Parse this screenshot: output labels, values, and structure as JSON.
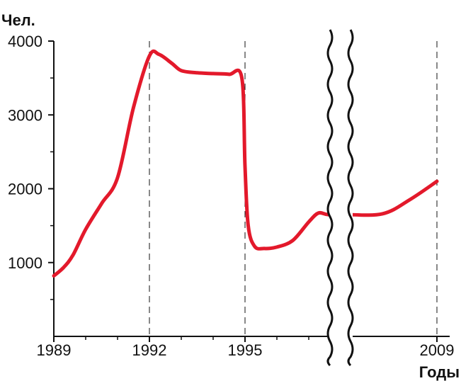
{
  "chart_data": {
    "type": "line",
    "ylabel": "Чел.",
    "xlabel": "Годы",
    "ylim": [
      0,
      4000
    ],
    "yticks": [
      "1000",
      "2000",
      "3000",
      "4000"
    ],
    "xticks": [
      "1989",
      "1992",
      "1995",
      "2009"
    ],
    "axis_break": "between 1997 and 2007",
    "grid": "vertical dashed lines at 1992, 1995, 2009",
    "colors": {
      "line": "#e3192b",
      "axis": "#111111"
    },
    "series": [
      {
        "x": [
          1989,
          1989.3,
          1989.6,
          1990,
          1990.5,
          1991,
          1991.5,
          1992,
          1992.3,
          1992.7,
          1993,
          1993.5,
          1994,
          1994.5,
          1994.9,
          1995.0,
          1995.1,
          1995.3,
          1995.6,
          1996,
          1996.5,
          1997,
          1997.3,
          2007,
          2007.3,
          2008,
          2008.5,
          2009
        ],
        "y": [
          820,
          930,
          1100,
          1450,
          1800,
          2150,
          3100,
          3800,
          3820,
          3700,
          3600,
          3570,
          3560,
          3550,
          3500,
          2300,
          1500,
          1220,
          1190,
          1210,
          1300,
          1550,
          1670,
          1650,
          1650,
          1660,
          1850,
          2100
        ]
      }
    ]
  }
}
